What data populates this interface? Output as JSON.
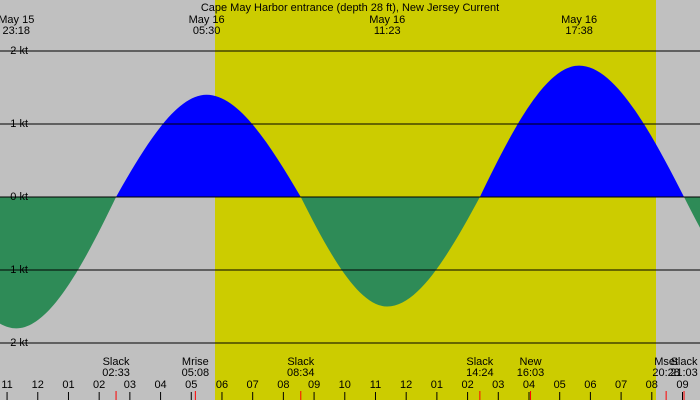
{
  "chart_data": {
    "type": "area",
    "title": "Cape May Harbor entrance (depth 28 ft), New Jersey Current",
    "x": [
      0.3,
      3.55,
      6.5,
      9.567,
      12.383,
      15.4,
      18.633,
      22.05
    ],
    "values": [
      -1.8,
      0,
      1.4,
      0,
      -1.5,
      0,
      1.8,
      0
    ],
    "flood_color": "#0000ff",
    "ebb_color": "#2e8b57",
    "xlim": [
      -0.23,
      22.57
    ],
    "ylim": [
      -2,
      2
    ],
    "yticks": [
      {
        "value": 2,
        "label": "2 kt"
      },
      {
        "value": 1,
        "label": "1 kt"
      },
      {
        "value": 0,
        "label": "0 kt"
      },
      {
        "value": -1,
        "label": "-1 kt"
      },
      {
        "value": -2,
        "label": "-2 kt"
      }
    ],
    "xticks": [
      {
        "value": 0,
        "label": "11"
      },
      {
        "value": 1,
        "label": "12"
      },
      {
        "value": 2,
        "label": "01"
      },
      {
        "value": 3,
        "label": "02"
      },
      {
        "value": 4,
        "label": "03"
      },
      {
        "value": 5,
        "label": "04"
      },
      {
        "value": 6,
        "label": "05"
      },
      {
        "value": 7,
        "label": "06"
      },
      {
        "value": 8,
        "label": "07"
      },
      {
        "value": 9,
        "label": "08"
      },
      {
        "value": 10,
        "label": "09"
      },
      {
        "value": 11,
        "label": "10"
      },
      {
        "value": 12,
        "label": "11"
      },
      {
        "value": 13,
        "label": "12"
      },
      {
        "value": 14,
        "label": "01"
      },
      {
        "value": 15,
        "label": "02"
      },
      {
        "value": 16,
        "label": "03"
      },
      {
        "value": 17,
        "label": "04"
      },
      {
        "value": 18,
        "label": "05"
      },
      {
        "value": 19,
        "label": "06"
      },
      {
        "value": 20,
        "label": "07"
      },
      {
        "value": 21,
        "label": "08"
      },
      {
        "value": 22,
        "label": "09"
      }
    ],
    "top_labels": [
      {
        "date": "May 15",
        "time": "23:18",
        "x": 0.3
      },
      {
        "date": "May 16",
        "time": "05:30",
        "x": 6.5
      },
      {
        "date": "May 16",
        "time": "11:23",
        "x": 12.383
      },
      {
        "date": "May 16",
        "time": "17:38",
        "x": 18.633
      }
    ],
    "events": [
      {
        "label": "Slack",
        "time": "02:33",
        "x": 3.55
      },
      {
        "label": "Mrise",
        "time": "05:08",
        "x": 6.133
      },
      {
        "label": "Slack",
        "time": "08:34",
        "x": 9.567
      },
      {
        "label": "Slack",
        "time": "14:24",
        "x": 15.4
      },
      {
        "label": "New",
        "time": "16:03",
        "x": 17.05
      },
      {
        "label": "Mset",
        "time": "20:28",
        "x": 21.467
      },
      {
        "label": "Slack",
        "time": "21:03",
        "x": 22.05
      }
    ]
  }
}
